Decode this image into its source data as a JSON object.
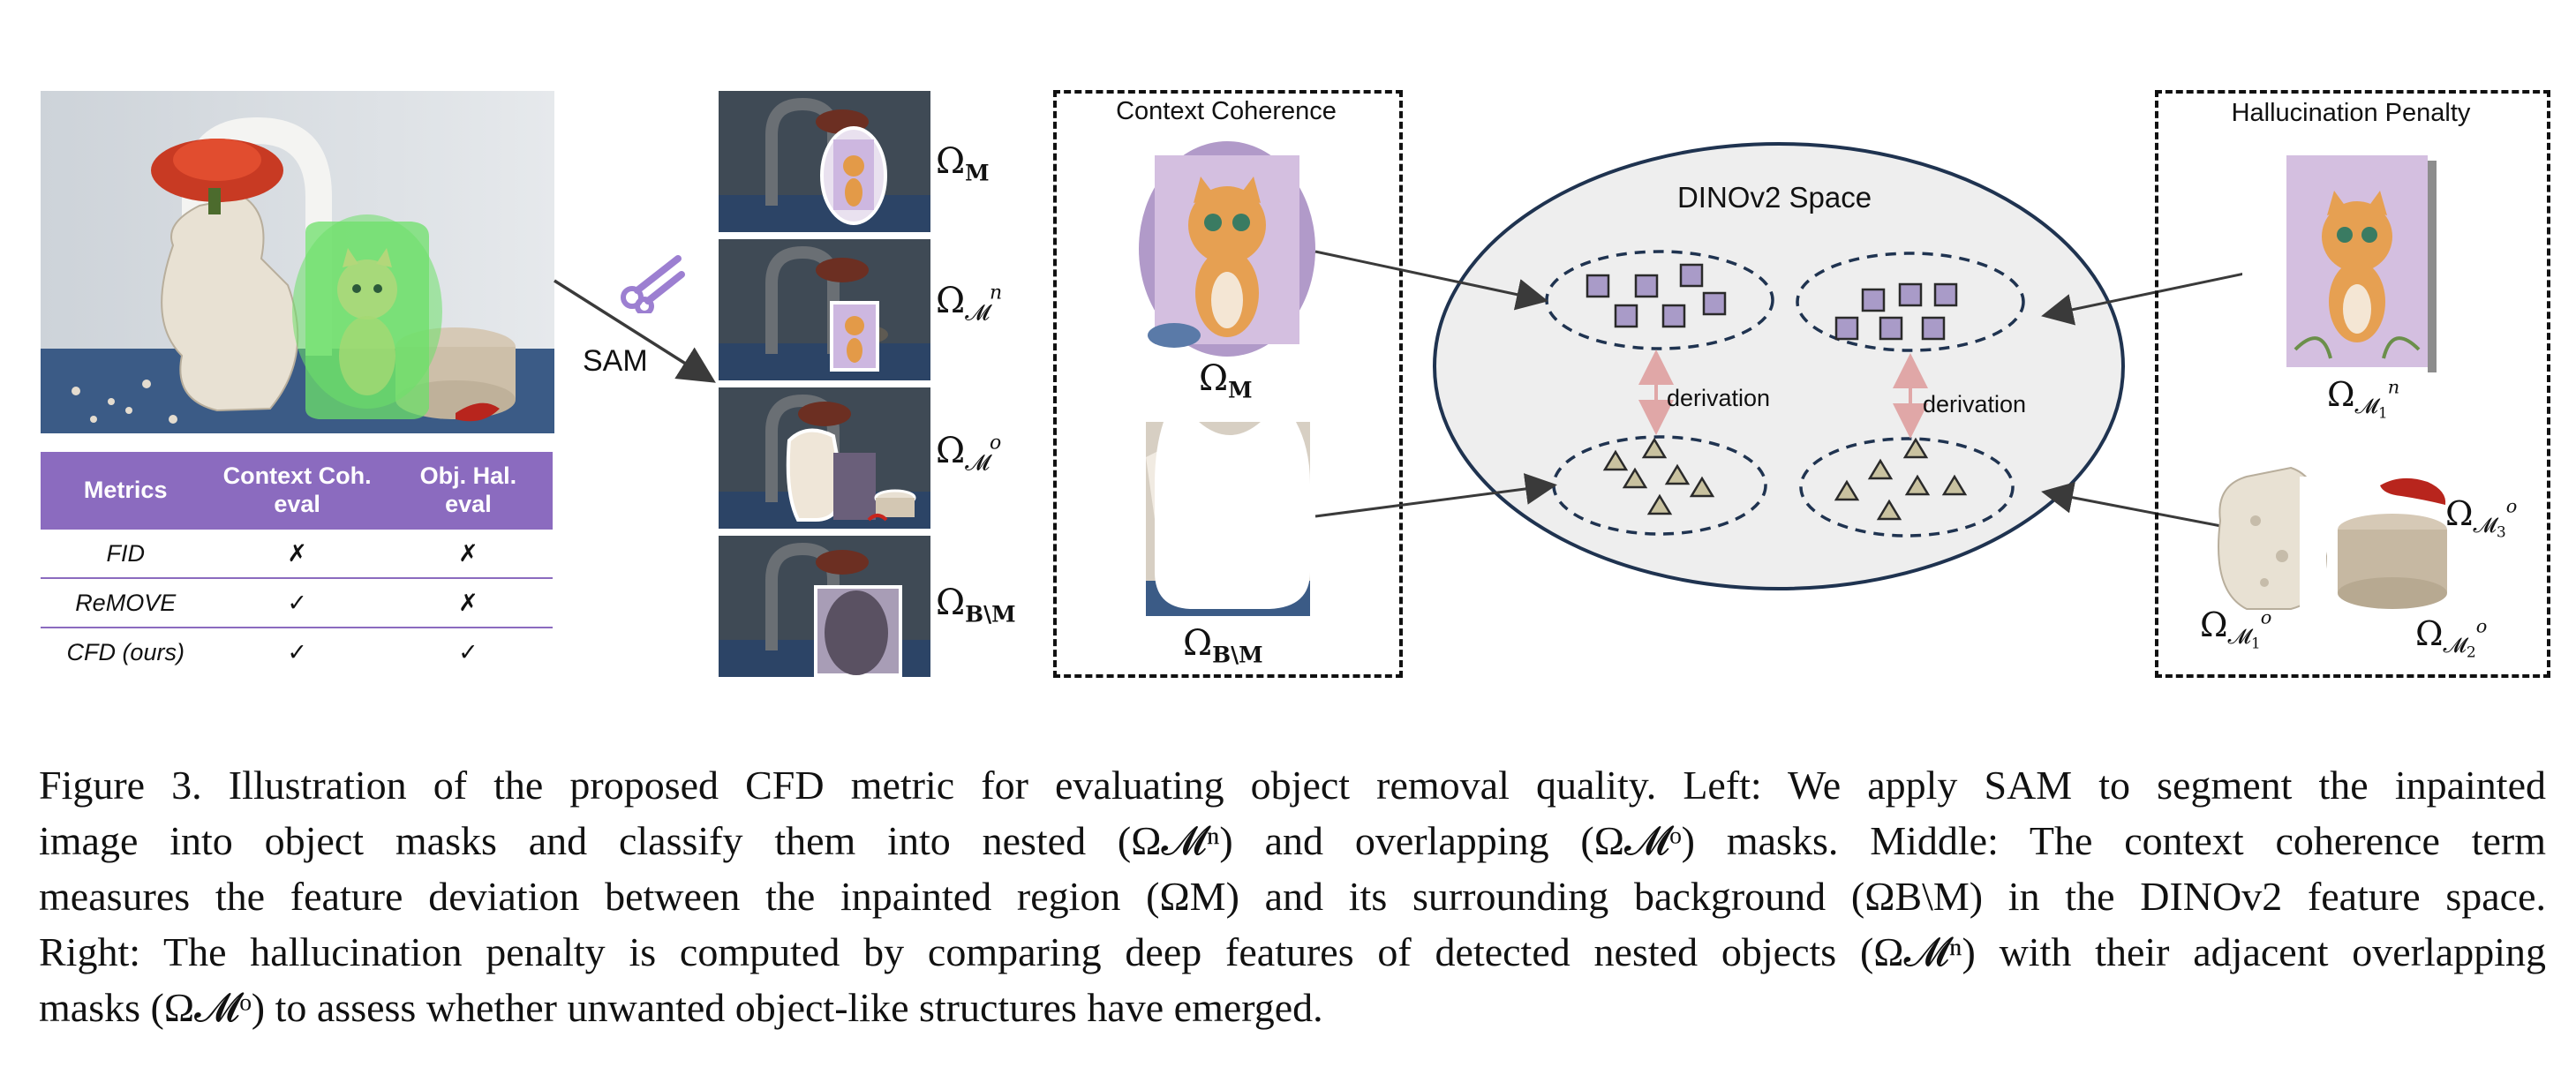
{
  "figure": {
    "sam_label": "SAM",
    "mask_labels": {
      "omega": "Ω",
      "m_sub": "M",
      "mn_sub": "𝓜",
      "mn_sup": "n",
      "mo_sub": "𝓜",
      "mo_sup": "o",
      "bm_sub": "B\\M"
    },
    "context_box_title": "Context Coherence",
    "hallucination_box_title": "Hallucination Penalty",
    "dino_title": "DINOv2 Space",
    "derivation_label_left": "derivation",
    "derivation_label_right": "derivation",
    "right_labels": {
      "m1n_sub": "𝓜",
      "m1n_subidx": "1",
      "m1n_sup": "n",
      "m1o_sub": "𝓜",
      "m1o_subidx": "1",
      "m1o_sup": "o",
      "m2o_sub": "𝓜",
      "m2o_subidx": "2",
      "m2o_sup": "o",
      "m3o_sub": "𝓜",
      "m3o_subidx": "3",
      "m3o_sup": "o"
    },
    "colors": {
      "table_header": "#8b6bbf",
      "square_fill": "#a99bc8",
      "triangle_fill": "#c9c2a0",
      "ellipse_fill": "#eeeeee",
      "ellipse_stroke": "#1f3350",
      "derivation_arrow": "#e0a7a7",
      "green_mask": "#6ee06a"
    }
  },
  "metrics_table": {
    "headers": [
      "Metrics",
      "Context Coh. eval",
      "Obj. Hal. eval"
    ],
    "header_lines": [
      [
        "Metrics"
      ],
      [
        "Context Coh.",
        "eval"
      ],
      [
        "Obj. Hal.",
        "eval"
      ]
    ],
    "rows": [
      {
        "name": "FID",
        "context": "✗",
        "hal": "✗"
      },
      {
        "name": "ReMOVE",
        "context": "✓",
        "hal": "✗"
      },
      {
        "name": "CFD (ours)",
        "context": "✓",
        "hal": "✓"
      }
    ]
  },
  "caption": {
    "lines": [
      "Figure 3.  Illustration of the proposed CFD metric for evaluating object removal quality.  Left:  We apply SAM to segment the inpainted",
      "image into object masks and classify them into nested (Ω𝓜ⁿ) and overlapping (Ω𝓜ᵒ) masks.  Middle:  The context coherence term",
      "measures the feature deviation between the inpainted region (ΩM) and its surrounding background (ΩB\\M) in the DINOv2 feature space.",
      "Right: The hallucination penalty is computed by comparing deep features of detected nested objects (Ω𝓜ⁿ) with their adjacent overlapping",
      "masks (Ω𝓜ᵒ) to assess whether unwanted object-like structures have emerged."
    ]
  }
}
